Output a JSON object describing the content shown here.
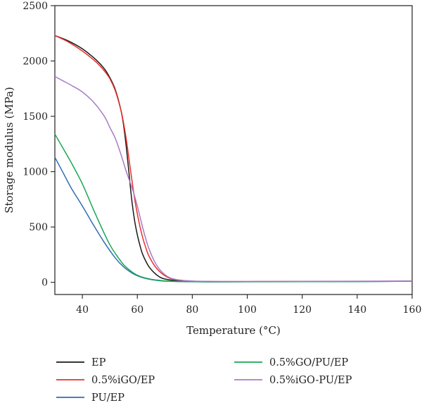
{
  "chart_data": {
    "type": "line",
    "title": "",
    "xlabel": "Temperature (°C)",
    "ylabel": "Storage modulus (MPa)",
    "xlim": [
      30,
      160
    ],
    "ylim": [
      -110,
      2500
    ],
    "x_ticks": [
      40,
      60,
      80,
      100,
      120,
      140,
      160
    ],
    "y_ticks": [
      0,
      500,
      1000,
      1500,
      2000,
      2500
    ],
    "grid": false,
    "legend_position": "bottom",
    "series": [
      {
        "name": "EP",
        "color": "#1a1a1a",
        "x": [
          30,
          35,
          40,
          45,
          48,
          50,
          52,
          54,
          55,
          56,
          57,
          58,
          59,
          60,
          61,
          62,
          64,
          66,
          68,
          70,
          75,
          80,
          90,
          100,
          120,
          140,
          160
        ],
        "y": [
          2230,
          2180,
          2110,
          2010,
          1930,
          1850,
          1740,
          1560,
          1420,
          1220,
          980,
          740,
          560,
          430,
          330,
          250,
          150,
          90,
          50,
          30,
          13,
          8,
          6,
          6,
          7,
          8,
          10
        ]
      },
      {
        "name": "0.5%iGO/EP",
        "color": "#e8302a",
        "x": [
          30,
          35,
          40,
          45,
          48,
          50,
          52,
          54,
          55,
          56,
          57,
          58,
          59,
          60,
          61,
          62,
          63,
          64,
          66,
          68,
          70,
          72,
          75,
          80,
          90,
          100,
          120,
          140,
          160
        ],
        "y": [
          2230,
          2170,
          2090,
          1990,
          1910,
          1840,
          1730,
          1560,
          1440,
          1290,
          1110,
          930,
          760,
          620,
          500,
          400,
          320,
          250,
          160,
          100,
          60,
          35,
          20,
          10,
          7,
          7,
          8,
          9,
          11
        ]
      },
      {
        "name": "PU/EP",
        "color": "#2f6db5",
        "x": [
          30,
          33,
          36,
          40,
          44,
          48,
          52,
          55,
          58,
          60,
          62,
          65,
          68,
          70,
          75,
          80,
          90,
          100,
          120,
          140,
          160
        ],
        "y": [
          1130,
          990,
          850,
          690,
          520,
          360,
          220,
          140,
          85,
          60,
          42,
          25,
          15,
          11,
          7,
          5,
          4,
          5,
          6,
          8,
          9
        ]
      },
      {
        "name": "0.5%GO/PU/EP",
        "color": "#1aa650",
        "x": [
          30,
          33,
          36,
          40,
          44,
          48,
          50,
          52,
          55,
          58,
          60,
          62,
          65,
          68,
          70,
          75,
          80,
          90,
          100,
          120,
          140,
          160
        ],
        "y": [
          1340,
          1210,
          1080,
          890,
          660,
          440,
          340,
          260,
          160,
          95,
          65,
          45,
          28,
          18,
          13,
          8,
          6,
          5,
          5,
          7,
          8,
          10
        ]
      },
      {
        "name": "0.5%iGO-PU/EP",
        "color": "#a97bc6",
        "x": [
          30,
          33,
          36,
          40,
          44,
          48,
          50,
          52,
          54,
          55,
          56,
          57,
          58,
          59,
          60,
          61,
          62,
          63,
          64,
          66,
          68,
          70,
          72,
          75,
          80,
          90,
          100,
          120,
          140,
          160
        ],
        "y": [
          1860,
          1820,
          1780,
          1720,
          1630,
          1500,
          1400,
          1300,
          1160,
          1080,
          1000,
          930,
          860,
          780,
          690,
          590,
          490,
          400,
          320,
          200,
          120,
          70,
          40,
          22,
          12,
          8,
          8,
          9,
          10,
          12
        ]
      }
    ]
  }
}
